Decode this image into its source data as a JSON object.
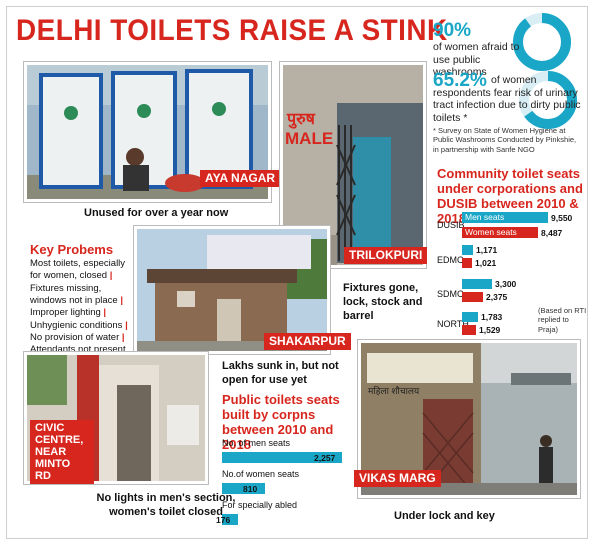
{
  "headline": "DELHI TOILETS RAISE A STINK",
  "stats": {
    "stat1_pct": "90%",
    "stat1_text": "of women afraid to use public washrooms",
    "stat2_pct": "65.2%",
    "stat2_text": "of women respondents fear risk of urinary tract infection due to dirty public toilets *",
    "footnote": "* Survey on State of Women Hygiene at Public Washrooms Conducted by Pinkshie, in partnership with Sanfe NGO"
  },
  "photos": {
    "aya_nagar": {
      "tag": "AYA NAGAR",
      "caption": "Unused for over a year now"
    },
    "trilokpuri": {
      "tag": "TRILOKPURI",
      "caption": "Fixtures gone, lock, stock and barrel",
      "sign_hindi": "पुरुष",
      "sign_en": "MALE"
    },
    "shakarpur": {
      "tag": "SHAKARPUR",
      "caption": "Lakhs sunk in, but not open for use yet"
    },
    "civic_centre": {
      "tag": "CIVIC CENTRE, NEAR MINTO RD",
      "caption": "No lights in men's section, women's toilet closed"
    },
    "vikas_marg": {
      "tag": "VIKAS MARG",
      "caption": "Under lock and key"
    }
  },
  "key_problems": {
    "title": "Key Probems",
    "items": [
      "Most toilets, especially for women, closed",
      "Fixtures missing, windows not in place",
      "Improper lighting",
      "Unhygienic conditions",
      "No provision of water",
      "Attendants not present"
    ]
  },
  "community": {
    "title": "Community toilet seats under corporations and DUSIB between 2010 & 2018",
    "note": "(Based on RTI replied to Praja)",
    "men_label": "Men seats",
    "women_label": "Women seats"
  },
  "public": {
    "title": "Public toilets seats built by corpns between 2010 and 2018",
    "men_label": "No. of men seats",
    "women_label": "No.of women seats",
    "abled_label": "For specially abled"
  },
  "chart_data": [
    {
      "type": "bar",
      "title": "Community toilet seats under corporations and DUSIB between 2010 & 2018",
      "categories": [
        "DUSIB",
        "EDMC",
        "SDMC",
        "NORTH"
      ],
      "series": [
        {
          "name": "Men seats",
          "color": "#1aa6c7",
          "values": [
            9550,
            1171,
            3300,
            1783
          ],
          "labels": [
            "9,550",
            "1,171",
            "3,300",
            "1,783"
          ]
        },
        {
          "name": "Women seats",
          "color": "#d7261e",
          "values": [
            8487,
            1021,
            2375,
            1529
          ],
          "labels": [
            "8,487",
            "1,021",
            "2,375",
            "1,529"
          ]
        }
      ]
    },
    {
      "type": "bar",
      "title": "Public toilets seats built by corpns between 2010 and 2018",
      "categories": [
        "No. of men seats",
        "No.of women seats",
        "For specially abled"
      ],
      "values": [
        2257,
        810,
        176
      ],
      "labels": [
        "2,257",
        "810",
        "176"
      ]
    }
  ],
  "colors": {
    "accent_red": "#d7261e",
    "accent_teal": "#1aa6c7"
  }
}
